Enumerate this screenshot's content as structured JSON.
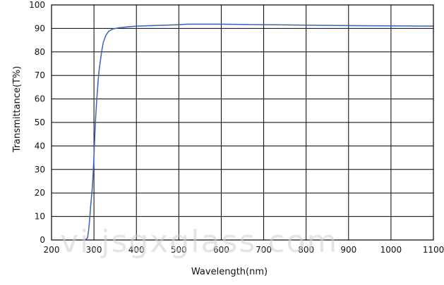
{
  "chart_data": {
    "type": "line",
    "title": "",
    "xlabel": "Wavelength(nm)",
    "ylabel": "Transmittance(T%)",
    "xlim": [
      200,
      1100
    ],
    "ylim": [
      0,
      100
    ],
    "xticks": [
      "200",
      "300",
      "400",
      "500",
      "600",
      "700",
      "800",
      "900",
      "1000",
      "1100"
    ],
    "yticks": [
      "0",
      "10",
      "20",
      "30",
      "40",
      "50",
      "60",
      "70",
      "80",
      "90",
      "100"
    ],
    "grid": true,
    "series": [
      {
        "color": "#3a63b8",
        "points": [
          [
            280,
            0
          ],
          [
            285,
            1
          ],
          [
            288,
            5
          ],
          [
            290,
            9
          ],
          [
            292,
            14
          ],
          [
            294,
            18
          ],
          [
            296,
            22
          ],
          [
            298,
            28
          ],
          [
            300,
            36
          ],
          [
            302,
            44
          ],
          [
            304,
            52
          ],
          [
            306,
            58
          ],
          [
            308,
            63
          ],
          [
            310,
            68
          ],
          [
            312,
            72
          ],
          [
            315,
            76
          ],
          [
            318,
            80
          ],
          [
            322,
            84
          ],
          [
            328,
            87
          ],
          [
            335,
            88.8
          ],
          [
            345,
            89.8
          ],
          [
            360,
            90.3
          ],
          [
            380,
            90.7
          ],
          [
            400,
            91.0
          ],
          [
            450,
            91.3
          ],
          [
            500,
            91.6
          ],
          [
            520,
            91.8
          ],
          [
            600,
            91.8
          ],
          [
            700,
            91.6
          ],
          [
            800,
            91.4
          ],
          [
            900,
            91.2
          ],
          [
            1000,
            91.1
          ],
          [
            1100,
            91.0
          ]
        ]
      }
    ]
  },
  "watermark": "vi.jsgxglass.com"
}
